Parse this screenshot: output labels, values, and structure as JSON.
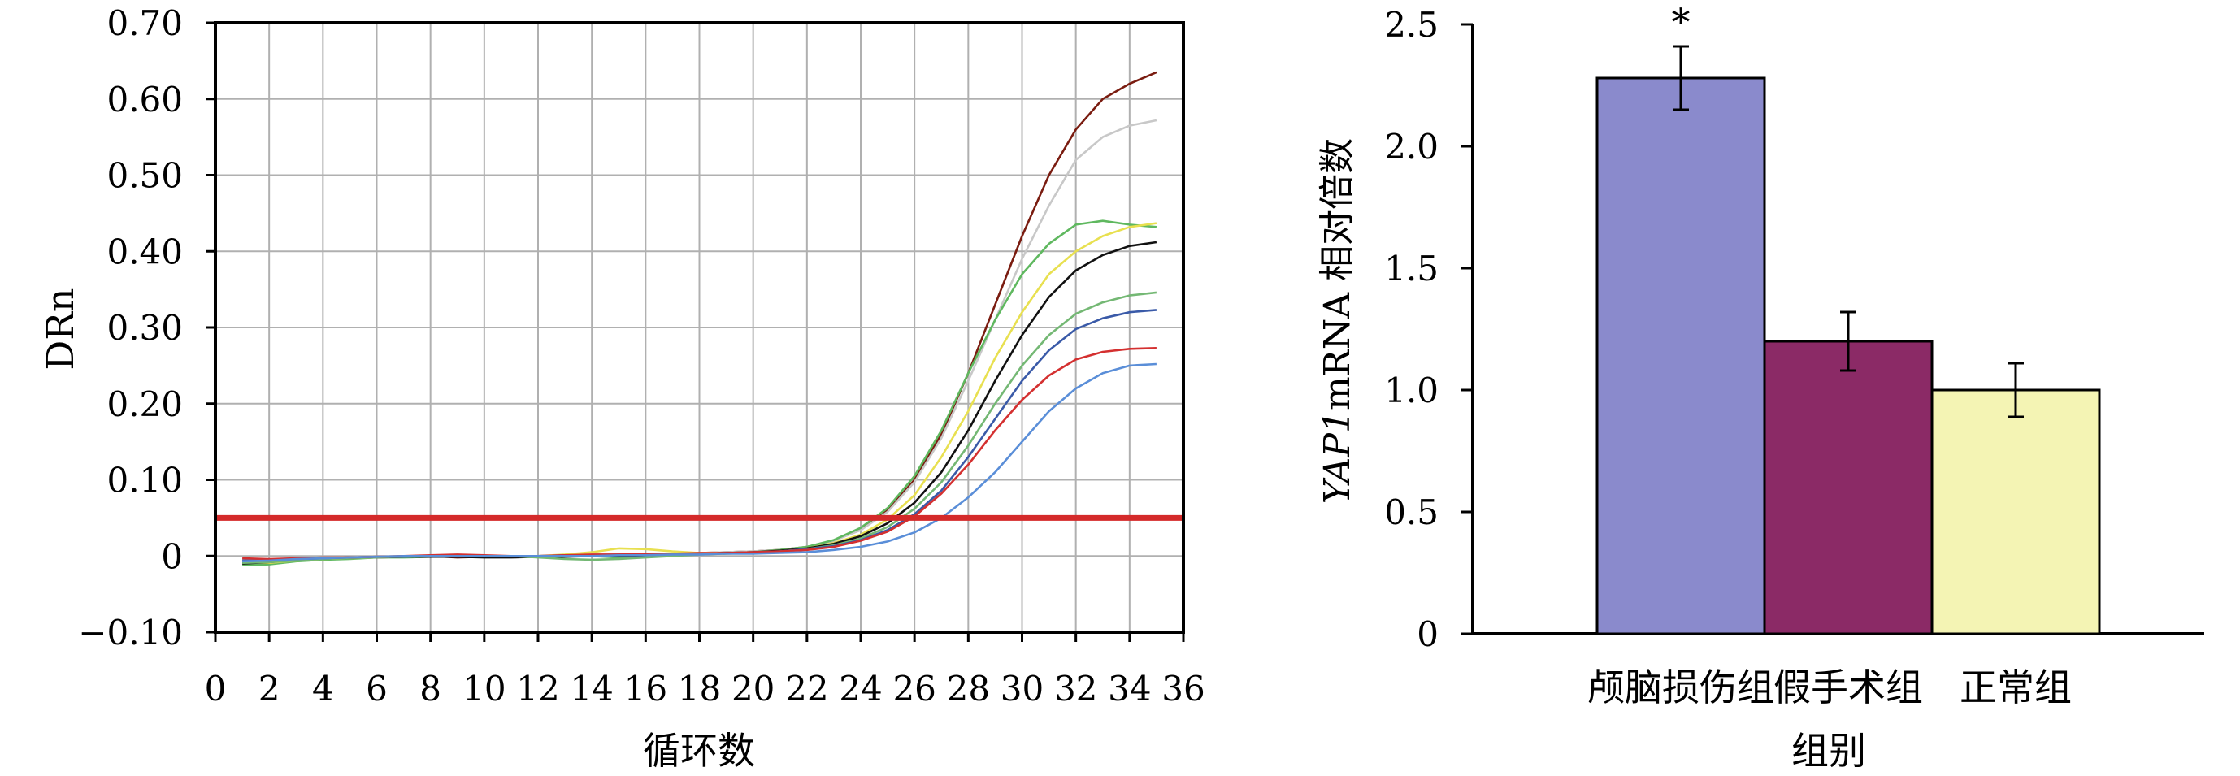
{
  "chart_data": [
    {
      "type": "line",
      "title": "",
      "xlabel": "循环数",
      "ylabel": "DRn",
      "xlim": [
        0,
        36
      ],
      "ylim": [
        -0.1,
        0.7
      ],
      "x_ticks": [
        "0",
        "2",
        "4",
        "6",
        "8",
        "10",
        "12",
        "14",
        "16",
        "18",
        "20",
        "22",
        "24",
        "26",
        "28",
        "30",
        "32",
        "34",
        "36"
      ],
      "y_ticks": [
        "−0.10",
        "0",
        "0.10",
        "0.20",
        "0.30",
        "0.40",
        "0.50",
        "0.60",
        "0.70"
      ],
      "grid": true,
      "threshold": 0.05,
      "colors": {
        "threshold": "#d42a2a",
        "curves": [
          "#7a1c10",
          "#c8c8c8",
          "#5fb85f",
          "#e8e050",
          "#111111",
          "#74b874",
          "#3a5aa8",
          "#d43030",
          "#5a8ed8"
        ]
      },
      "x": [
        1,
        2,
        3,
        4,
        5,
        6,
        7,
        8,
        9,
        10,
        11,
        12,
        13,
        14,
        15,
        16,
        17,
        18,
        19,
        20,
        21,
        22,
        23,
        24,
        25,
        26,
        27,
        28,
        29,
        30,
        31,
        32,
        33,
        34,
        35
      ],
      "series": [
        {
          "values": [
            -0.005,
            -0.007,
            -0.004,
            -0.004,
            -0.003,
            -0.002,
            0,
            0,
            -0.002,
            -0.001,
            0,
            0,
            0,
            0,
            0.001,
            0.002,
            0.003,
            0.004,
            0.005,
            0.006,
            0.008,
            0.012,
            0.02,
            0.035,
            0.06,
            0.1,
            0.16,
            0.24,
            0.33,
            0.42,
            0.5,
            0.56,
            0.6,
            0.62,
            0.635
          ]
        },
        {
          "values": [
            -0.004,
            -0.006,
            -0.003,
            -0.003,
            -0.002,
            -0.002,
            0,
            0,
            -0.001,
            0,
            0,
            0,
            0.001,
            0.002,
            0.002,
            0.003,
            0.003,
            0.004,
            0.005,
            0.006,
            0.008,
            0.012,
            0.02,
            0.034,
            0.058,
            0.097,
            0.155,
            0.23,
            0.31,
            0.39,
            0.46,
            0.52,
            0.55,
            0.565,
            0.572
          ]
        },
        {
          "values": [
            -0.012,
            -0.011,
            -0.007,
            -0.005,
            -0.004,
            -0.002,
            -0.002,
            -0.001,
            -0.001,
            0,
            0,
            0,
            0,
            0,
            -0.002,
            -0.001,
            0.001,
            0.003,
            0.004,
            0.005,
            0.008,
            0.012,
            0.021,
            0.037,
            0.063,
            0.105,
            0.165,
            0.24,
            0.31,
            0.37,
            0.41,
            0.435,
            0.44,
            0.435,
            0.432
          ]
        },
        {
          "values": [
            -0.008,
            -0.009,
            -0.006,
            -0.004,
            -0.003,
            -0.002,
            -0.001,
            0,
            0,
            0,
            0,
            0,
            0.002,
            0.005,
            0.01,
            0.009,
            0.006,
            0.004,
            0.004,
            0.005,
            0.007,
            0.01,
            0.017,
            0.028,
            0.048,
            0.08,
            0.13,
            0.19,
            0.26,
            0.32,
            0.37,
            0.4,
            0.42,
            0.432,
            0.437
          ]
        },
        {
          "values": [
            -0.01,
            -0.008,
            -0.005,
            -0.003,
            -0.002,
            -0.002,
            -0.001,
            -0.001,
            -0.001,
            -0.002,
            -0.002,
            -0.001,
            -0.001,
            0,
            0,
            0.001,
            0.002,
            0.003,
            0.004,
            0.005,
            0.007,
            0.01,
            0.016,
            0.026,
            0.043,
            0.07,
            0.11,
            0.165,
            0.23,
            0.29,
            0.34,
            0.375,
            0.395,
            0.407,
            0.412
          ]
        },
        {
          "values": [
            -0.009,
            -0.008,
            -0.006,
            -0.004,
            -0.003,
            -0.002,
            -0.001,
            0,
            0,
            0,
            0,
            -0.002,
            -0.004,
            -0.005,
            -0.004,
            -0.002,
            0,
            0.002,
            0.003,
            0.004,
            0.006,
            0.009,
            0.014,
            0.023,
            0.038,
            0.062,
            0.097,
            0.145,
            0.2,
            0.25,
            0.29,
            0.318,
            0.333,
            0.342,
            0.346
          ]
        },
        {
          "values": [
            -0.006,
            -0.006,
            -0.004,
            -0.003,
            -0.002,
            -0.001,
            -0.001,
            0,
            0,
            0,
            0,
            0,
            0.001,
            0.001,
            0.002,
            0.002,
            0.003,
            0.003,
            0.004,
            0.005,
            0.006,
            0.009,
            0.013,
            0.021,
            0.034,
            0.055,
            0.086,
            0.13,
            0.18,
            0.23,
            0.27,
            0.298,
            0.312,
            0.32,
            0.323
          ]
        },
        {
          "values": [
            -0.003,
            -0.004,
            -0.003,
            -0.002,
            -0.002,
            -0.001,
            0,
            0.001,
            0.002,
            0.001,
            0,
            0,
            0.001,
            0.002,
            0.002,
            0.003,
            0.003,
            0.004,
            0.004,
            0.005,
            0.006,
            0.008,
            0.012,
            0.02,
            0.032,
            0.052,
            0.082,
            0.12,
            0.165,
            0.205,
            0.237,
            0.258,
            0.268,
            0.272,
            0.273
          ]
        },
        {
          "values": [
            -0.007,
            -0.006,
            -0.004,
            -0.003,
            -0.002,
            -0.001,
            0,
            0,
            0,
            0,
            0,
            0,
            0,
            0,
            0.001,
            0.001,
            0.002,
            0.002,
            0.003,
            0.003,
            0.004,
            0.005,
            0.008,
            0.012,
            0.019,
            0.031,
            0.05,
            0.077,
            0.11,
            0.15,
            0.19,
            0.22,
            0.24,
            0.25,
            0.252
          ]
        }
      ]
    },
    {
      "type": "bar",
      "title": "",
      "xlabel": "组别",
      "ylabel_italic": "YAP1",
      "ylabel_rest": "mRNA 相对倍数",
      "categories": [
        "颅脑损伤组",
        "假手术组",
        "正常组"
      ],
      "values": [
        2.28,
        1.2,
        1.0
      ],
      "errors": [
        0.13,
        0.12,
        0.11
      ],
      "annotations": [
        "*",
        "",
        ""
      ],
      "ylim": [
        0,
        2.5
      ],
      "y_ticks": [
        "0",
        "0.5",
        "1.0",
        "1.5",
        "2.0",
        "2.5"
      ],
      "grid": false,
      "colors": [
        "#8a8acc",
        "#8b2a66",
        "#f4f4b4"
      ]
    }
  ]
}
